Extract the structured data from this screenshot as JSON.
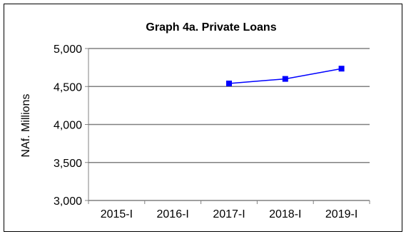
{
  "chart_data": {
    "type": "line",
    "title": "Graph 4a. Private Loans",
    "xlabel": "",
    "ylabel": "NAf.  Millions",
    "categories": [
      "2015-I",
      "2016-I",
      "2017-I",
      "2018-I",
      "2019-I"
    ],
    "series": [
      {
        "values": [
          null,
          null,
          4540,
          4600,
          4735
        ]
      }
    ],
    "ylim": [
      3000,
      5000
    ],
    "yticks": [
      3000,
      3500,
      4000,
      4500,
      5000
    ],
    "ytick_labels": [
      "3,000",
      "3,500",
      "4,000",
      "4,500",
      "5,000"
    ],
    "grid": true,
    "legend": "none",
    "colors": {
      "series": "#0000ff",
      "grid": "#808080",
      "axis": "#808080",
      "border": "#000000"
    }
  }
}
